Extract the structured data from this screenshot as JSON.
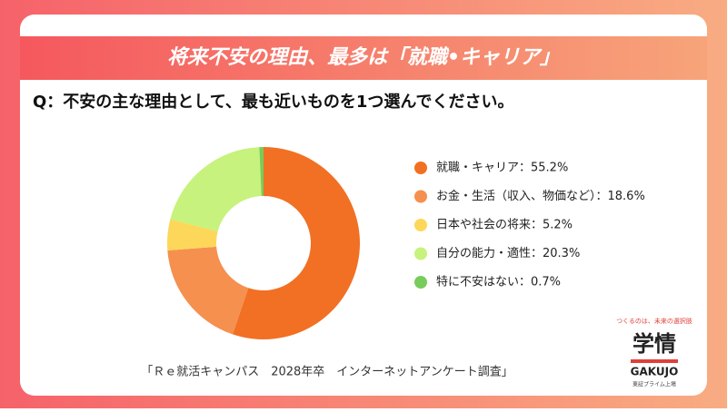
{
  "chart_data": {
    "type": "donut",
    "title": "将来不安の理由、最多は「就職•キャリア」",
    "subtitle": "Q：不安の主な理由として、最も近いものを1つ選んでください。",
    "categories": [
      "就職・キャリア：55.2%",
      "お金・生活（収入、物価など）：18.6%",
      "日本や社会の将来：5.2%",
      "自分の能力・適性：20.3%",
      "特に不安はない：0.7%"
    ],
    "values": [
      55.2,
      18.6,
      5.2,
      20.3,
      0.7
    ],
    "colors": [
      "#f27023",
      "#f5904f",
      "#fdd75a",
      "#c7f27d",
      "#78cc5a"
    ],
    "source": "「Ｒｅ就活キャンパス　2028年卒　インターネットアンケート調査」"
  },
  "logo": {
    "tagline": "つくるのは、未来の選択肢",
    "name": "学情",
    "roman": "GAKUJO",
    "note": "東証プライム上場"
  }
}
